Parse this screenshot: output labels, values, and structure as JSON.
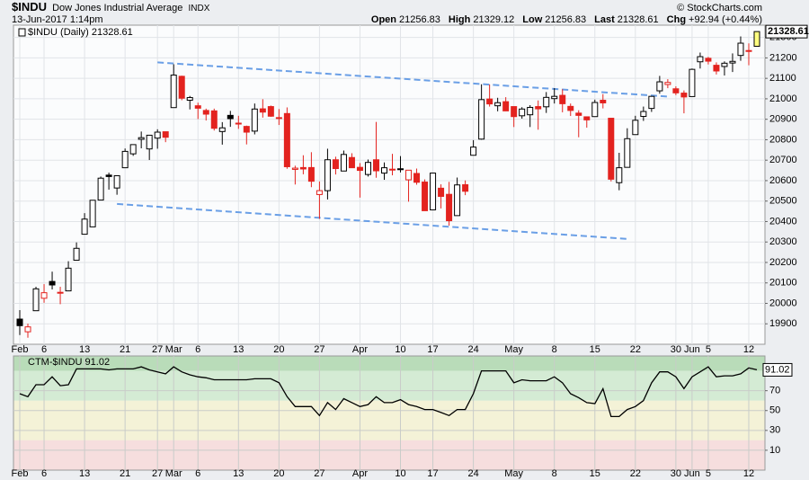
{
  "header": {
    "symbol": "$INDU",
    "name": "Dow Jones Industrial Average",
    "exchange": "INDX",
    "timestamp": "13-Jun-2017 1:14pm",
    "copyright": "© StockCharts.com",
    "quote": [
      {
        "label": "Open",
        "value": 21256.83
      },
      {
        "label": "High",
        "value": 21329.12
      },
      {
        "label": "Low",
        "value": 21256.83
      },
      {
        "label": "Last",
        "value": 21328.61
      },
      {
        "label": "Chg",
        "value": "+92.94 (+0.44%)"
      }
    ]
  },
  "chart_data": [
    {
      "type": "candlestick",
      "legend": "$INDU (Daily) 21328.61",
      "categories": [
        "Feb",
        null,
        null,
        "6",
        null,
        null,
        null,
        null,
        "13",
        null,
        null,
        null,
        null,
        "21",
        null,
        null,
        null,
        "27",
        null,
        "Mar",
        null,
        null,
        "6",
        null,
        null,
        null,
        null,
        "13",
        null,
        null,
        null,
        null,
        "20",
        null,
        null,
        null,
        null,
        "27",
        null,
        null,
        null,
        null,
        "Apr",
        null,
        null,
        null,
        null,
        "10",
        null,
        null,
        null,
        "17",
        null,
        null,
        null,
        null,
        "24",
        null,
        null,
        null,
        null,
        "May",
        null,
        null,
        null,
        null,
        "8",
        null,
        null,
        null,
        null,
        "15",
        null,
        null,
        null,
        null,
        "22",
        null,
        null,
        null,
        null,
        "30",
        null,
        "Jun",
        null,
        "5",
        null,
        null,
        null,
        null,
        "12",
        null
      ],
      "open": [
        19923,
        19861,
        19964,
        20025,
        20107,
        20050,
        20061,
        20211,
        20338,
        20374,
        20505,
        20627,
        20564,
        20663,
        20731,
        20802,
        20755,
        20808,
        20839,
        20957,
        21110,
        20993,
        20966,
        20943,
        20941,
        20840,
        20919,
        20880,
        20865,
        20842,
        20951,
        20962,
        20908,
        20928,
        20655,
        20664,
        20664,
        20532,
        20551,
        20702,
        20647,
        20713,
        20665,
        20630,
        20702,
        20637,
        20652,
        20658,
        20604,
        20635,
        20593,
        20457,
        20563,
        20533,
        20429,
        20580,
        20724,
        20803,
        20999,
        20966,
        20986,
        20962,
        20917,
        20922,
        20962,
        20961,
        21001,
        21017,
        20963,
        20930,
        20912,
        20913,
        20993,
        20905,
        20590,
        20665,
        20825,
        20914,
        20953,
        21039,
        21070,
        21049,
        21028,
        21011,
        21181,
        21198,
        21164,
        21158,
        21175,
        21212,
        21235,
        21256.83
      ],
      "high": [
        19967,
        19901,
        20081,
        20094,
        20155,
        20081,
        20206,
        20298,
        20441,
        20504,
        20620,
        20639,
        20624,
        20757,
        20776,
        20840,
        20823,
        20851,
        20839,
        21169,
        21113,
        21014,
        20981,
        20952,
        20952,
        20886,
        20941,
        20917,
        20869,
        20977,
        20998,
        20967,
        20950,
        20958,
        20673,
        20724,
        20739,
        20596,
        20756,
        20717,
        20747,
        20734,
        20686,
        20703,
        20887,
        20689,
        20731,
        20720,
        20652,
        20659,
        20606,
        20638,
        20582,
        20594,
        20615,
        20601,
        20798,
        21071,
        21070,
        21005,
        21008,
        20962,
        20959,
        20969,
        20992,
        21033,
        21052,
        21047,
        20977,
        20944,
        20914,
        20996,
        21023,
        20905,
        20736,
        20856,
        20917,
        20962,
        21014,
        21112,
        21096,
        21061,
        21041,
        21148,
        21226,
        21205,
        21178,
        21183,
        21222,
        21305,
        21271,
        21329.12
      ],
      "low": [
        19845,
        19832,
        19964,
        20003,
        20068,
        19996,
        20061,
        20211,
        20338,
        20374,
        20505,
        20556,
        20531,
        20663,
        20721,
        20758,
        20701,
        20756,
        20788,
        20957,
        20993,
        20948,
        20901,
        20894,
        20845,
        20776,
        20863,
        20853,
        20777,
        20826,
        20908,
        20912,
        20872,
        20658,
        20581,
        20631,
        20568,
        20413,
        20508,
        20630,
        20647,
        20663,
        20517,
        20620,
        20614,
        20604,
        20626,
        20640,
        20497,
        20580,
        20453,
        20457,
        20464,
        20380,
        20429,
        20529,
        20724,
        20800,
        20962,
        20939,
        20940,
        20862,
        20903,
        20862,
        20849,
        20931,
        20977,
        20934,
        20916,
        20812,
        20859,
        20913,
        20953,
        20596,
        20553,
        20665,
        20825,
        20892,
        20936,
        21025,
        21052,
        21018,
        20929,
        21011,
        21148,
        21168,
        21119,
        21114,
        21131,
        21186,
        21164,
        21256.83
      ],
      "close": [
        19891,
        19885,
        20071,
        20052,
        20090,
        20054,
        20172,
        20269,
        20412,
        20504,
        20612,
        20620,
        20624,
        20743,
        20776,
        20810,
        20822,
        20837,
        20812,
        21116,
        21003,
        21006,
        20954,
        20925,
        20856,
        20858,
        20903,
        20881,
        20837,
        20950,
        20935,
        20915,
        20906,
        20668,
        20661,
        20657,
        20597,
        20551,
        20702,
        20659,
        20728,
        20663,
        20650,
        20689,
        20648,
        20663,
        20656,
        20658,
        20651,
        20592,
        20453,
        20637,
        20523,
        20404,
        20579,
        20548,
        20764,
        20996,
        20975,
        20981,
        20941,
        20913,
        20950,
        20958,
        20951,
        21007,
        21012,
        20976,
        20943,
        20919,
        20897,
        20982,
        20980,
        20607,
        20663,
        20805,
        20895,
        20938,
        21012,
        21083,
        21080,
        21029,
        21009,
        21144,
        21206,
        21184,
        21136,
        21174,
        21183,
        21272,
        21236,
        21328.61
      ],
      "last_value": 21328.61,
      "ylim": [
        19800,
        21360
      ],
      "yticks": [
        19900,
        20000,
        20100,
        20200,
        20300,
        20400,
        20500,
        20600,
        20700,
        20800,
        20900,
        21000,
        21100,
        21200,
        21300
      ],
      "grid": true,
      "up_color": "#000000",
      "down_color": "#e3231f",
      "last_color": "#ffff80",
      "trendline_color": "#6a9fe6",
      "trendlines": [
        {
          "from": 17,
          "to": 80,
          "start": 21178,
          "end": 21011
        },
        {
          "from": 12,
          "to": 75,
          "start": 20486,
          "end": 20315
        }
      ]
    },
    {
      "type": "line",
      "legend": "CTM-$INDU 91.02",
      "categories": [
        "Feb",
        null,
        null,
        "6",
        null,
        null,
        null,
        null,
        "13",
        null,
        null,
        null,
        null,
        "21",
        null,
        null,
        null,
        "27",
        null,
        "Mar",
        null,
        null,
        "6",
        null,
        null,
        null,
        null,
        "13",
        null,
        null,
        null,
        null,
        "20",
        null,
        null,
        null,
        null,
        "27",
        null,
        null,
        null,
        null,
        "Apr",
        null,
        null,
        null,
        null,
        "10",
        null,
        null,
        null,
        "17",
        null,
        null,
        null,
        null,
        "24",
        null,
        null,
        null,
        null,
        "May",
        null,
        null,
        null,
        null,
        "8",
        null,
        null,
        null,
        null,
        "15",
        null,
        null,
        null,
        null,
        "22",
        null,
        null,
        null,
        null,
        "30",
        null,
        "Jun",
        null,
        "5",
        null,
        null,
        null,
        null,
        "12",
        null
      ],
      "values": [
        67,
        64,
        76,
        76,
        84,
        75,
        76,
        92,
        92,
        92,
        92,
        91,
        92,
        92,
        92,
        94,
        91,
        89,
        87,
        94,
        89,
        86,
        84,
        83,
        81,
        81,
        81,
        81,
        81,
        82,
        82,
        82,
        78,
        64,
        54,
        54,
        54,
        45,
        58,
        51,
        62,
        58,
        54,
        56,
        64,
        58,
        58,
        61,
        56,
        54,
        51,
        51,
        48,
        45,
        51,
        51,
        67,
        90,
        90,
        90,
        90,
        78,
        81,
        80,
        80,
        80,
        84,
        78,
        67,
        63,
        58,
        57,
        72,
        44,
        44,
        51,
        54,
        60,
        78,
        89,
        89,
        84,
        72,
        84,
        89,
        94,
        84,
        85,
        85,
        87,
        93,
        91.02
      ],
      "last_value": 91.02,
      "color": "#000000",
      "ylim": [
        -10,
        105
      ],
      "yticks": [
        10,
        30,
        50,
        70
      ],
      "grid": true,
      "bands": [
        {
          "min": 90,
          "max": 105,
          "color": "#b9dcb9"
        },
        {
          "min": 60,
          "max": 90,
          "color": "#d4ebd4"
        },
        {
          "min": 20,
          "max": 60,
          "color": "#f4f2d7"
        },
        {
          "min": -10,
          "max": 20,
          "color": "#f6dede"
        }
      ]
    }
  ]
}
